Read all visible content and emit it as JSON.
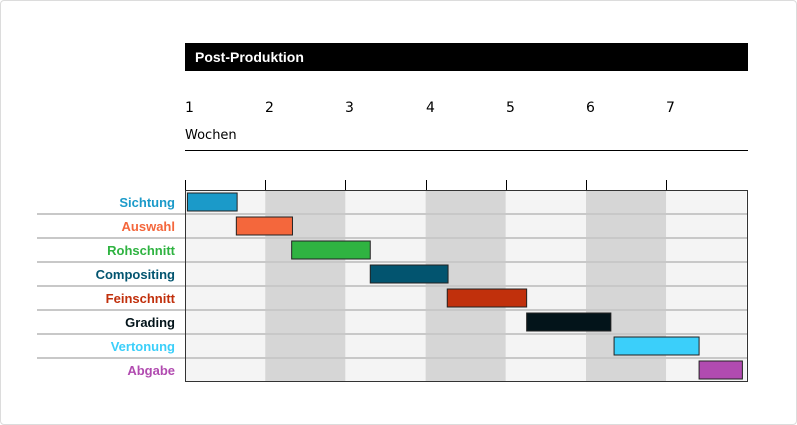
{
  "chart_data": {
    "type": "gantt",
    "title": "Post-Produktion",
    "xlabel": "Wochen",
    "x_ticks": [
      "1",
      "2",
      "3",
      "4",
      "5",
      "6",
      "7"
    ],
    "xlim": [
      1,
      7.95
    ],
    "grid": true,
    "tasks": [
      {
        "name": "Sichtung",
        "start": 1.03,
        "end": 1.65,
        "color": "#1B9AC9"
      },
      {
        "name": "Auswahl",
        "start": 1.64,
        "end": 2.34,
        "color": "#F4673C"
      },
      {
        "name": "Rohschnitt",
        "start": 2.33,
        "end": 3.31,
        "color": "#2FB341"
      },
      {
        "name": "Compositing",
        "start": 3.31,
        "end": 4.28,
        "color": "#02546F"
      },
      {
        "name": "Feinschnitt",
        "start": 4.27,
        "end": 5.26,
        "color": "#C1300C"
      },
      {
        "name": "Grading",
        "start": 5.26,
        "end": 6.31,
        "color": "#03141A"
      },
      {
        "name": "Vertonung",
        "start": 6.35,
        "end": 7.41,
        "color": "#3BCFFA"
      },
      {
        "name": "Abgabe",
        "start": 7.41,
        "end": 7.95,
        "color": "#B14BB0"
      }
    ]
  }
}
